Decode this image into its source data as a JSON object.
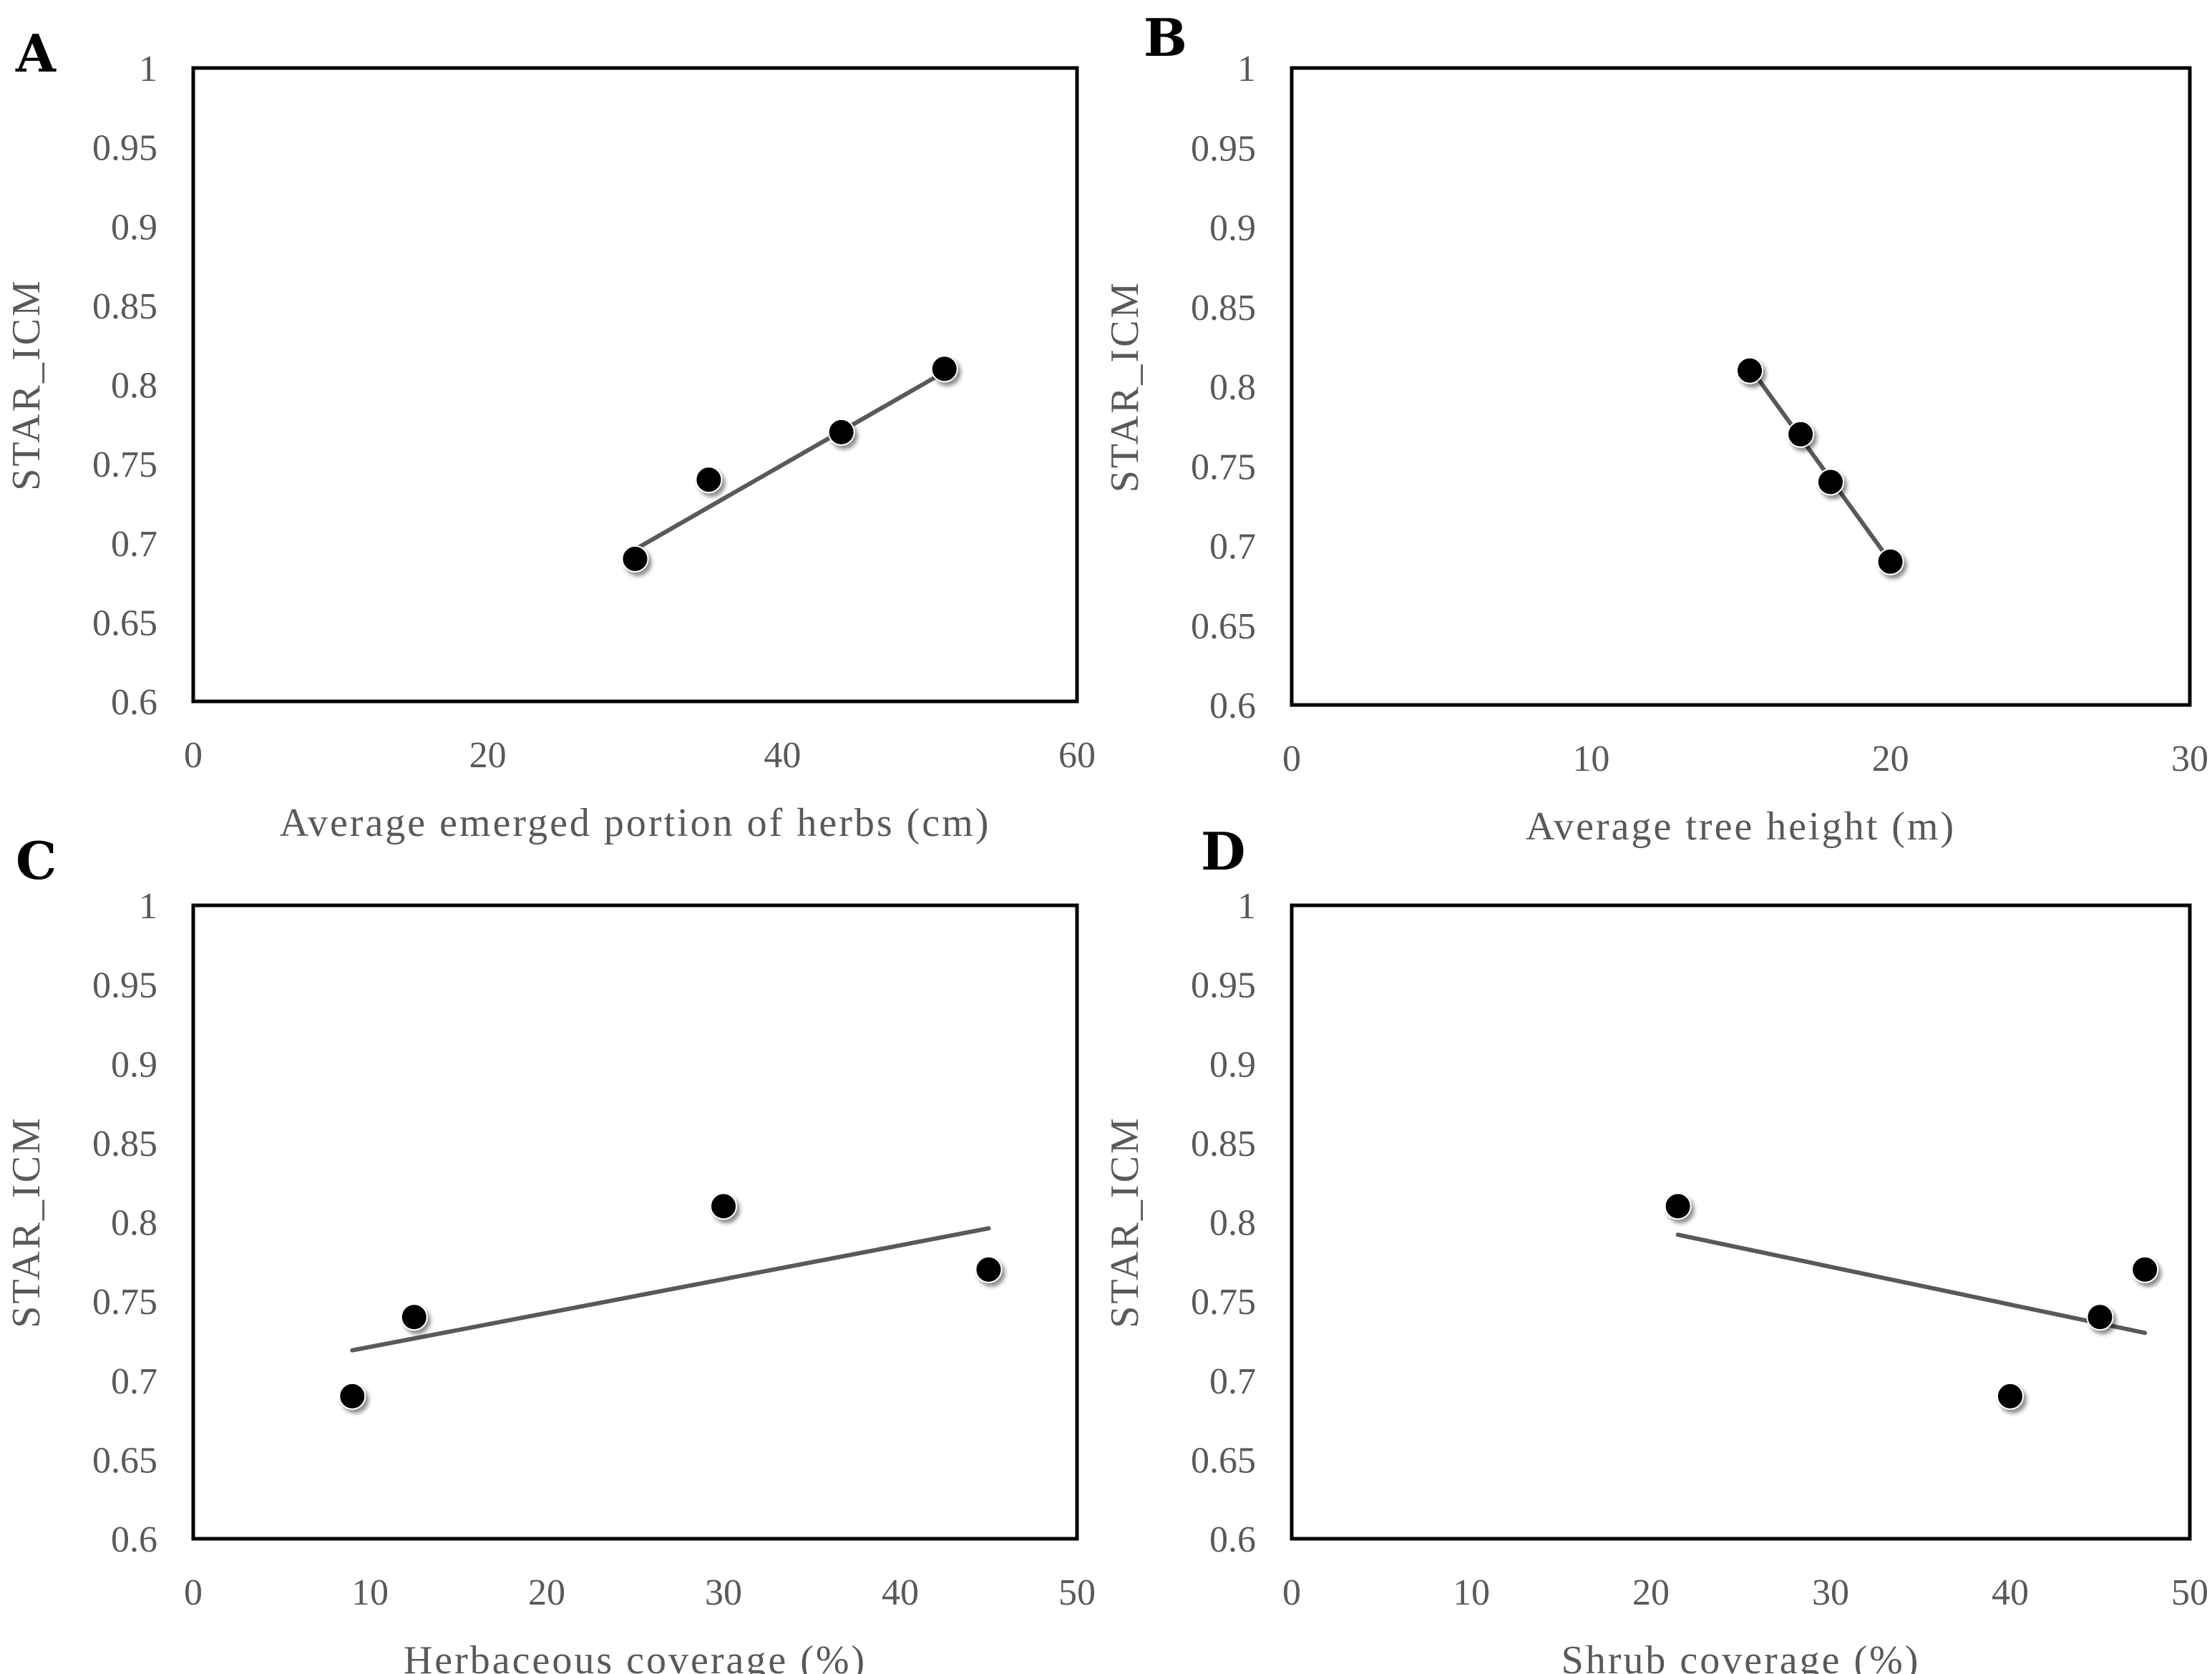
{
  "chart_data": [
    {
      "panel": "A",
      "type": "scatter",
      "xlabel": "Average emerged portion of herbs (cm)",
      "ylabel": "STAR_ICM",
      "xlim": [
        0,
        60
      ],
      "ylim": [
        0.6,
        1
      ],
      "xticks": [
        "0",
        "20",
        "40",
        "60"
      ],
      "yticks": [
        "0.6",
        "0.65",
        "0.7",
        "0.75",
        "0.8",
        "0.85",
        "0.9",
        "0.95",
        "1"
      ],
      "points": [
        {
          "x": 30,
          "y": 0.69
        },
        {
          "x": 35,
          "y": 0.74
        },
        {
          "x": 44,
          "y": 0.77
        },
        {
          "x": 51,
          "y": 0.81
        }
      ],
      "trendline": {
        "x": [
          30,
          51
        ],
        "y": [
          0.696,
          0.808
        ]
      },
      "marker_color": "#000000",
      "line_color": "#595959"
    },
    {
      "panel": "B",
      "type": "scatter",
      "xlabel": "Average tree height (m)",
      "ylabel": "STAR_ICM",
      "xlim": [
        0,
        30
      ],
      "ylim": [
        0.6,
        1
      ],
      "xticks": [
        "0",
        "10",
        "20",
        "30"
      ],
      "yticks": [
        "0.6",
        "0.65",
        "0.7",
        "0.75",
        "0.8",
        "0.85",
        "0.9",
        "0.95",
        "1"
      ],
      "points": [
        {
          "x": 15.3,
          "y": 0.81
        },
        {
          "x": 17,
          "y": 0.77
        },
        {
          "x": 18,
          "y": 0.74
        },
        {
          "x": 20,
          "y": 0.69
        }
      ],
      "trendline": {
        "x": [
          15.3,
          20
        ],
        "y": [
          0.812,
          0.69
        ]
      },
      "marker_color": "#000000",
      "line_color": "#595959"
    },
    {
      "panel": "C",
      "type": "scatter",
      "xlabel": "Herbaceous coverage (%)",
      "ylabel": "STAR_ICM",
      "xlim": [
        0,
        50
      ],
      "ylim": [
        0.6,
        1
      ],
      "xticks": [
        "0",
        "10",
        "20",
        "30",
        "40",
        "50"
      ],
      "yticks": [
        "0.6",
        "0.65",
        "0.7",
        "0.75",
        "0.8",
        "0.85",
        "0.9",
        "0.95",
        "1"
      ],
      "points": [
        {
          "x": 9,
          "y": 0.69
        },
        {
          "x": 12.5,
          "y": 0.74
        },
        {
          "x": 30,
          "y": 0.81
        },
        {
          "x": 45,
          "y": 0.77
        }
      ],
      "trendline": {
        "x": [
          9,
          45
        ],
        "y": [
          0.719,
          0.796
        ]
      },
      "marker_color": "#000000",
      "line_color": "#595959"
    },
    {
      "panel": "D",
      "type": "scatter",
      "xlabel": "Shrub coverage (%)",
      "ylabel": "STAR_ICM",
      "xlim": [
        0,
        50
      ],
      "ylim": [
        0.6,
        1
      ],
      "xticks": [
        "0",
        "10",
        "20",
        "30",
        "40",
        "50"
      ],
      "yticks": [
        "0.6",
        "0.65",
        "0.7",
        "0.75",
        "0.8",
        "0.85",
        "0.9",
        "0.95",
        "1"
      ],
      "points": [
        {
          "x": 21.5,
          "y": 0.81
        },
        {
          "x": 40,
          "y": 0.69
        },
        {
          "x": 45,
          "y": 0.74
        },
        {
          "x": 47.5,
          "y": 0.77
        }
      ],
      "trendline": {
        "x": [
          21.5,
          47.5
        ],
        "y": [
          0.792,
          0.73
        ]
      },
      "marker_color": "#000000",
      "line_color": "#595959"
    }
  ]
}
